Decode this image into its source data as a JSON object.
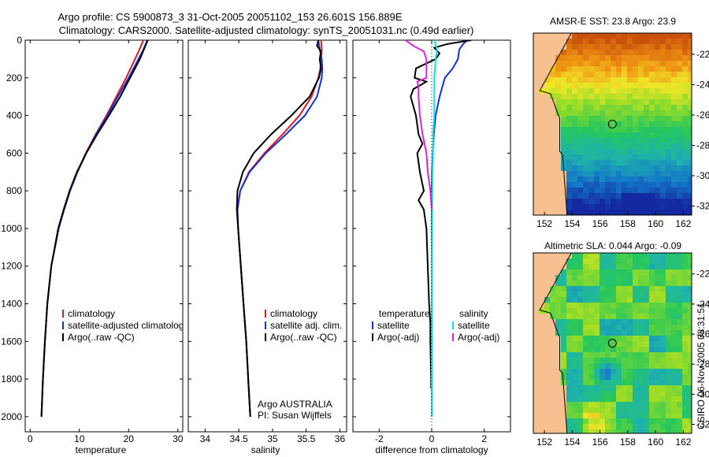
{
  "title_line1": "Argo profile: CS 5900873_3 31-Oct-2005 20051102_153 26.601S 156.889E",
  "title_line2": "Climatology: CARS2000. Satellite-adjusted climatology: synTS_20051031.nc (0.49d earlier)",
  "side_label": "CSIRO 06-Nov-2005 08:31:51",
  "credit_line1": "Argo AUSTRALIA",
  "credit_line2": "PI: Susan Wijffels",
  "colors": {
    "climatology": "#e8181c",
    "satellite": "#1030e0",
    "argo": "#000000",
    "sal_satellite": "#00e8e8",
    "sal_argo": "#e020e0",
    "land": "#f6c090"
  },
  "chart_data": [
    {
      "type": "line",
      "panel": "temperature",
      "xlabel": "temperature",
      "ylabel": "depth",
      "xlim": [
        -1,
        31
      ],
      "ylim": [
        2080,
        0
      ],
      "xticks": [
        0,
        10,
        20,
        30
      ],
      "yticks": [
        0,
        200,
        400,
        600,
        800,
        1000,
        1200,
        1400,
        1600,
        1800,
        2000
      ],
      "legend": [
        "climatology",
        "satellite-adjusted climatology",
        "Argo(..raw -QC)"
      ],
      "series": [
        {
          "name": "climatology",
          "color": "climatology",
          "depth": [
            0,
            50,
            100,
            200,
            300,
            400,
            500,
            600,
            700,
            800,
            900,
            1000,
            1200,
            1400,
            1600,
            1800,
            2000
          ],
          "values": [
            23.0,
            22.2,
            21.3,
            19.5,
            17.5,
            15.5,
            13.3,
            11.3,
            9.6,
            8.1,
            6.9,
            5.8,
            4.3,
            3.5,
            3.0,
            2.6,
            2.3
          ]
        },
        {
          "name": "satellite-adjusted climatology",
          "color": "satellite",
          "depth": [
            0,
            50,
            100,
            200,
            300,
            400,
            500,
            600,
            700,
            800,
            900,
            1000,
            1200,
            1400,
            1600,
            1800,
            2000
          ],
          "values": [
            23.8,
            23.0,
            22.0,
            20.0,
            17.8,
            15.7,
            13.4,
            11.4,
            9.6,
            8.1,
            6.9,
            5.8,
            4.3,
            3.5,
            3.0,
            2.6,
            2.3
          ]
        },
        {
          "name": "Argo(..raw -QC)",
          "color": "argo",
          "depth": [
            0,
            50,
            100,
            200,
            300,
            400,
            500,
            600,
            700,
            800,
            900,
            1000,
            1200,
            1400,
            1600,
            1800,
            2000
          ],
          "values": [
            23.9,
            23.1,
            22.3,
            20.3,
            18.3,
            16.0,
            13.6,
            11.4,
            9.5,
            8.0,
            6.8,
            5.7,
            4.3,
            3.5,
            3.0,
            2.6,
            2.3
          ]
        }
      ]
    },
    {
      "type": "line",
      "panel": "salinity",
      "xlabel": "salinity",
      "ylabel": "depth",
      "xlim": [
        33.75,
        36.1
      ],
      "ylim": [
        2080,
        0
      ],
      "xticks": [
        34,
        34.5,
        35,
        35.5,
        36
      ],
      "legend": [
        "climatology",
        "satellite adj. clim.",
        "Argo(..raw -QC)"
      ],
      "series": [
        {
          "name": "climatology",
          "color": "climatology",
          "depth": [
            0,
            50,
            100,
            150,
            200,
            300,
            400,
            500,
            600,
            700,
            800,
            900,
            1000,
            1200,
            1400,
            1600,
            1800,
            2000
          ],
          "values": [
            35.72,
            35.73,
            35.72,
            35.71,
            35.68,
            35.58,
            35.4,
            35.15,
            34.88,
            34.65,
            34.52,
            34.48,
            34.49,
            34.53,
            34.57,
            34.61,
            34.64,
            34.67
          ]
        },
        {
          "name": "satellite adj. clim.",
          "color": "satellite",
          "depth": [
            0,
            50,
            100,
            150,
            200,
            300,
            400,
            500,
            600,
            700,
            800,
            900,
            1000,
            1200,
            1400,
            1600,
            1800,
            2000
          ],
          "values": [
            35.68,
            35.7,
            35.73,
            35.74,
            35.73,
            35.66,
            35.48,
            35.2,
            34.9,
            34.66,
            34.52,
            34.48,
            34.49,
            34.53,
            34.57,
            34.61,
            34.64,
            34.67
          ]
        },
        {
          "name": "Argo(..raw -QC)",
          "color": "argo",
          "depth": [
            0,
            30,
            60,
            100,
            150,
            200,
            300,
            400,
            500,
            600,
            700,
            800,
            900,
            1000,
            1200,
            1400,
            1600,
            1800,
            2000
          ],
          "values": [
            35.68,
            35.66,
            35.72,
            35.7,
            35.72,
            35.69,
            35.55,
            35.28,
            34.98,
            34.72,
            34.56,
            34.48,
            34.47,
            34.49,
            34.53,
            34.57,
            34.61,
            34.64,
            34.67
          ]
        }
      ]
    },
    {
      "type": "line",
      "panel": "difference",
      "xlabel": "difference from climatology",
      "ylabel": "depth",
      "xlim": [
        -3,
        3
      ],
      "ylim": [
        2080,
        0
      ],
      "xticks": [
        -2,
        0,
        2
      ],
      "legend_temperature_title": "temperature",
      "legend_salinity_title": "salinity",
      "legend_temperature": [
        "satellite",
        "Argo(-adj)"
      ],
      "legend_salinity": [
        "satellite",
        "Argo(-adj)"
      ],
      "series": [
        {
          "name": "temperature satellite",
          "color": "satellite",
          "depth": [
            0,
            20,
            50,
            100,
            150,
            200,
            300,
            400,
            500,
            600,
            700,
            800,
            900,
            1000,
            1200,
            1400,
            1600,
            1800,
            2000
          ],
          "values": [
            1.35,
            1.2,
            1.05,
            1.0,
            0.8,
            0.5,
            0.3,
            0.15,
            0.08,
            0.04,
            0.01,
            0.0,
            0.0,
            0.0,
            0.0,
            0.0,
            0.0,
            0.0,
            0.0
          ]
        },
        {
          "name": "temperature Argo(-adj)",
          "color": "argo",
          "depth": [
            0,
            20,
            40,
            70,
            100,
            150,
            200,
            220,
            260,
            300,
            400,
            500,
            550,
            600,
            700,
            800,
            850,
            900,
            1000,
            1200,
            1400,
            1500,
            1600,
            1800,
            1850
          ],
          "values": [
            1.5,
            0.6,
            0.1,
            0.3,
            0.15,
            -0.6,
            -0.65,
            -0.2,
            -0.7,
            -0.8,
            -0.6,
            -0.5,
            -0.35,
            -0.55,
            -0.45,
            -0.3,
            -0.5,
            -0.3,
            -0.2,
            -0.15,
            -0.1,
            -0.05,
            -0.05,
            -0.02,
            -0.02
          ]
        },
        {
          "name": "salinity satellite",
          "color": "sal_satellite",
          "depth": [
            0,
            50,
            100,
            200,
            300,
            400,
            500,
            600,
            700,
            800,
            1000,
            1200,
            1400,
            1600,
            1800,
            2000
          ],
          "values": [
            0.1,
            0.2,
            0.15,
            0.1,
            0.1,
            0.1,
            0.05,
            0.05,
            0.03,
            0.02,
            0.01,
            0.0,
            0.0,
            0.0,
            0.0,
            0.0
          ]
        },
        {
          "name": "salinity Argo(-adj)",
          "color": "sal_argo",
          "depth": [
            0,
            30,
            60,
            100,
            150,
            200,
            220,
            250,
            300,
            400,
            500,
            600,
            700,
            800,
            900
          ],
          "values": [
            -1.0,
            -0.7,
            -0.3,
            -0.2,
            -0.2,
            -0.2,
            -0.55,
            -0.5,
            -0.5,
            -0.45,
            -0.35,
            -0.2,
            -0.15,
            -0.05,
            0.0
          ]
        }
      ]
    },
    {
      "type": "heatmap",
      "panel": "sst_map",
      "title": "AMSR-E SST: 23.8 Argo: 23.9",
      "xlim": [
        151.2,
        162.6
      ],
      "ylim": [
        -32.6,
        -20.6
      ],
      "xticks": [
        152,
        154,
        156,
        158,
        160,
        162
      ],
      "yticks": [
        -22,
        -24,
        -26,
        -28,
        -30,
        -32
      ],
      "float_position": {
        "lon": 156.889,
        "lat": -26.601
      }
    },
    {
      "type": "heatmap",
      "panel": "sla_map",
      "title": "Altimetric SLA: 0.044 Argo: -0.09",
      "xlim": [
        151.2,
        162.6
      ],
      "ylim": [
        -32.6,
        -20.6
      ],
      "xticks": [
        152,
        154,
        156,
        158,
        160,
        162
      ],
      "yticks": [
        -22,
        -24,
        -26,
        -28,
        -30,
        -32
      ],
      "float_position": {
        "lon": 156.889,
        "lat": -26.601
      }
    }
  ]
}
